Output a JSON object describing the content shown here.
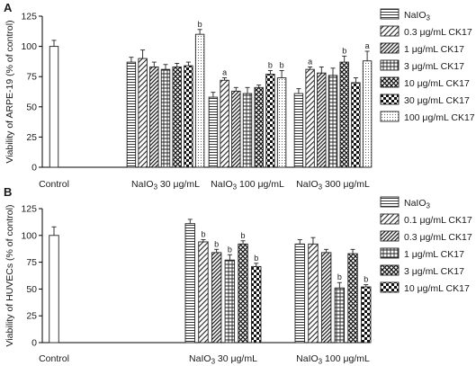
{
  "chart_data": [
    {
      "panel": "A",
      "type": "bar",
      "ylabel": "Viability of ARPE-19 (% of control)",
      "ylim": [
        0,
        125
      ],
      "yticks": [
        0,
        25,
        50,
        75,
        100,
        125
      ],
      "groups": [
        {
          "label": "Control",
          "treatments": [
            {
              "series": "Control",
              "value": 100,
              "err": 5,
              "sig": ""
            }
          ]
        },
        {
          "label": "NaIO3 30 μg/mL",
          "treatments": [
            {
              "series": "NaIO3",
              "value": 87,
              "err": 4,
              "sig": ""
            },
            {
              "series": "0.3 μg/mL CK17",
              "value": 90,
              "err": 7,
              "sig": ""
            },
            {
              "series": "1 μg/mL CK17",
              "value": 83,
              "err": 4,
              "sig": ""
            },
            {
              "series": "3 μg/mL CK17",
              "value": 81,
              "err": 4,
              "sig": ""
            },
            {
              "series": "10 μg/mL CK17",
              "value": 83,
              "err": 3,
              "sig": ""
            },
            {
              "series": "30 μg/mL CK17",
              "value": 84,
              "err": 3,
              "sig": ""
            },
            {
              "series": "100 μg/mL CK17",
              "value": 110,
              "err": 4,
              "sig": "b"
            }
          ]
        },
        {
          "label": "NaIO3 100 μg/mL",
          "treatments": [
            {
              "series": "NaIO3",
              "value": 58,
              "err": 4,
              "sig": ""
            },
            {
              "series": "0.3 μg/mL CK17",
              "value": 72,
              "err": 2,
              "sig": "a"
            },
            {
              "series": "1 μg/mL CK17",
              "value": 63,
              "err": 3,
              "sig": ""
            },
            {
              "series": "3 μg/mL CK17",
              "value": 61,
              "err": 5,
              "sig": ""
            },
            {
              "series": "10 μg/mL CK17",
              "value": 66,
              "err": 2,
              "sig": ""
            },
            {
              "series": "30 μg/mL CK17",
              "value": 77,
              "err": 3,
              "sig": "b"
            },
            {
              "series": "100 μg/mL CK17",
              "value": 74,
              "err": 6,
              "sig": "b"
            }
          ]
        },
        {
          "label": "NaIO3 300 μg/mL",
          "treatments": [
            {
              "series": "NaIO3",
              "value": 61,
              "err": 4,
              "sig": ""
            },
            {
              "series": "0.3 μg/mL CK17",
              "value": 81,
              "err": 2,
              "sig": "a"
            },
            {
              "series": "1 μg/mL CK17",
              "value": 78,
              "err": 5,
              "sig": ""
            },
            {
              "series": "3 μg/mL CK17",
              "value": 76,
              "err": 6,
              "sig": ""
            },
            {
              "series": "10 μg/mL CK17",
              "value": 87,
              "err": 5,
              "sig": "b"
            },
            {
              "series": "30 μg/mL CK17",
              "value": 70,
              "err": 4,
              "sig": ""
            },
            {
              "series": "100 μg/mL CK17",
              "value": 88,
              "err": 8,
              "sig": "a"
            }
          ]
        }
      ],
      "legend": [
        "NaIO3",
        "0.3 μg/mL CK17",
        "1 μg/mL CK17",
        "3 μg/mL CK17",
        "10 μg/mL CK17",
        "30 μg/mL CK17",
        "100 μg/mL CK17"
      ],
      "legend_placement": "right"
    },
    {
      "panel": "B",
      "type": "bar",
      "ylabel": "Viability of HUVECs (% of control)",
      "ylim": [
        0,
        125
      ],
      "yticks": [
        0,
        25,
        50,
        75,
        100,
        125
      ],
      "groups": [
        {
          "label": "Control",
          "treatments": [
            {
              "series": "Control",
              "value": 100,
              "err": 8,
              "sig": ""
            }
          ]
        },
        {
          "label": "NaIO3 30 μg/mL",
          "treatments": [
            {
              "series": "NaIO3",
              "value": 111,
              "err": 4,
              "sig": ""
            },
            {
              "series": "0.1 μg/mL CK17",
              "value": 94,
              "err": 2,
              "sig": "b"
            },
            {
              "series": "0.3 μg/mL CK17",
              "value": 84,
              "err": 3,
              "sig": "b"
            },
            {
              "series": "1 μg/mL CK17",
              "value": 77,
              "err": 5,
              "sig": "b"
            },
            {
              "series": "3 μg/mL CK17",
              "value": 92,
              "err": 3,
              "sig": "b"
            },
            {
              "series": "10 μg/mL CK17",
              "value": 71,
              "err": 3,
              "sig": "b"
            }
          ]
        },
        {
          "label": "NaIO3 100 μg/mL",
          "treatments": [
            {
              "series": "NaIO3",
              "value": 92,
              "err": 4,
              "sig": ""
            },
            {
              "series": "0.1 μg/mL CK17",
              "value": 92,
              "err": 6,
              "sig": ""
            },
            {
              "series": "0.3 μg/mL CK17",
              "value": 84,
              "err": 3,
              "sig": ""
            },
            {
              "series": "1 μg/mL CK17",
              "value": 51,
              "err": 5,
              "sig": "b"
            },
            {
              "series": "3 μg/mL CK17",
              "value": 83,
              "err": 4,
              "sig": ""
            },
            {
              "series": "10 μg/mL CK17",
              "value": 52,
              "err": 2,
              "sig": "b"
            }
          ]
        }
      ],
      "legend": [
        "NaIO3",
        "0.1 μg/mL CK17",
        "0.3 μg/mL CK17",
        "1 μg/mL CK17",
        "3 μg/mL CK17",
        "10 μg/mL CK17"
      ],
      "legend_placement": "right"
    }
  ]
}
